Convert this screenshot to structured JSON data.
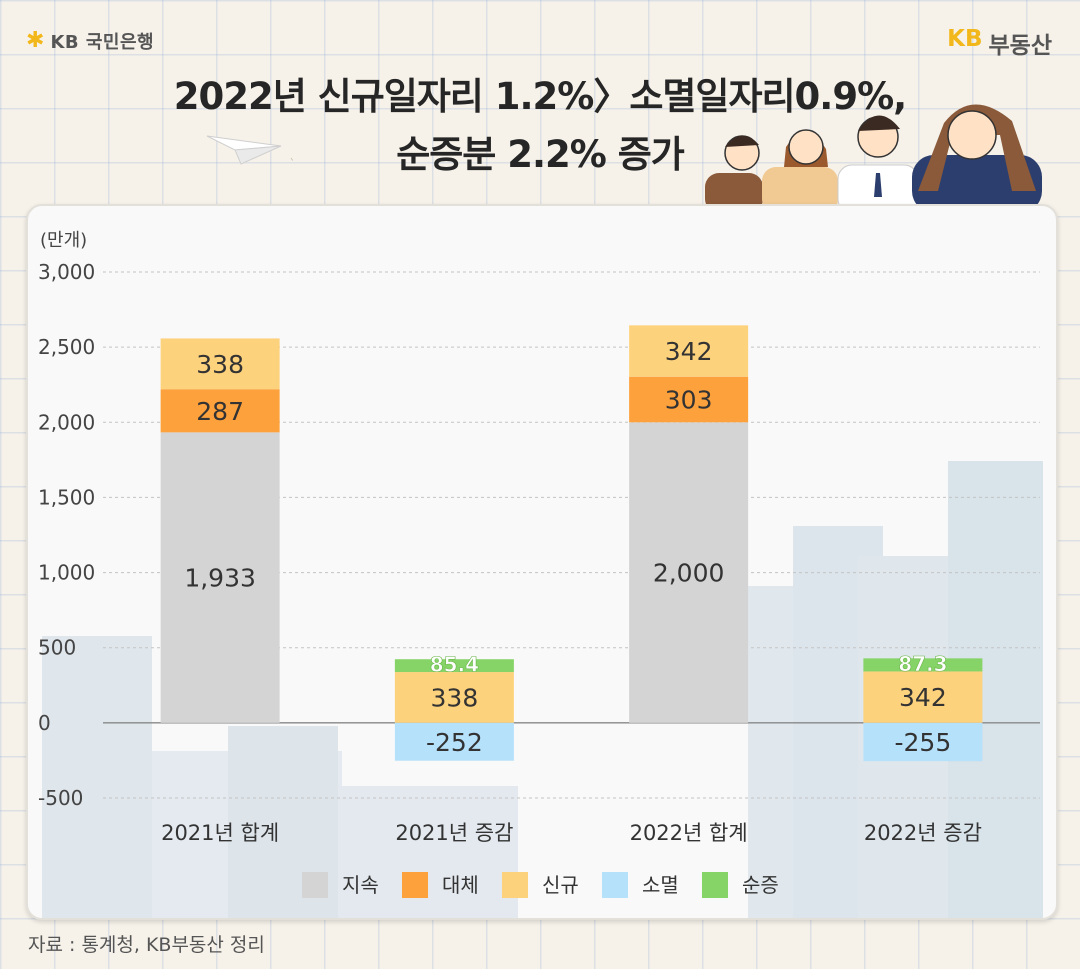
{
  "brand": {
    "left_text": "KB 국민은행",
    "right_kb": "KB",
    "right_text": "부동산"
  },
  "title": {
    "line1": "2022년 신규일자리 1.2%〉소멸일자리0.9%,",
    "line2": "순증분 2.2% 증가"
  },
  "colors": {
    "지속": "#d4d4d4",
    "대체": "#fda13d",
    "신규": "#fdd27d",
    "소멸": "#b6e1fb",
    "순증": "#86d467"
  },
  "chart_data": {
    "type": "bar",
    "stacked": true,
    "unit_label": "(만개)",
    "categories": [
      "2021년 합계",
      "2021년 증감",
      "2022년 합계",
      "2022년 증감"
    ],
    "series": [
      {
        "name": "지속",
        "values": [
          1933,
          null,
          2000,
          null
        ],
        "labels": [
          "1,933",
          "",
          "2,000",
          ""
        ]
      },
      {
        "name": "대체",
        "values": [
          287,
          null,
          303,
          null
        ],
        "labels": [
          "287",
          "",
          "303",
          ""
        ]
      },
      {
        "name": "신규",
        "values": [
          338,
          338,
          342,
          342
        ],
        "labels": [
          "338",
          "338",
          "342",
          "342"
        ]
      },
      {
        "name": "소멸",
        "values": [
          null,
          -252,
          null,
          -255
        ],
        "labels": [
          "",
          "-252",
          "",
          "-255"
        ]
      },
      {
        "name": "순증",
        "values": [
          null,
          85.4,
          null,
          87.3
        ],
        "labels": [
          "",
          "85.4",
          "",
          "87.3"
        ]
      }
    ],
    "yticks": [
      "3,000",
      "2,500",
      "2,000",
      "1,500",
      "1,000",
      "500",
      "0",
      "-500"
    ],
    "ylim": [
      -500,
      3000
    ],
    "grid": true,
    "legend_position": "bottom"
  },
  "source": "자료 : 통계청, KB부동산 정리"
}
